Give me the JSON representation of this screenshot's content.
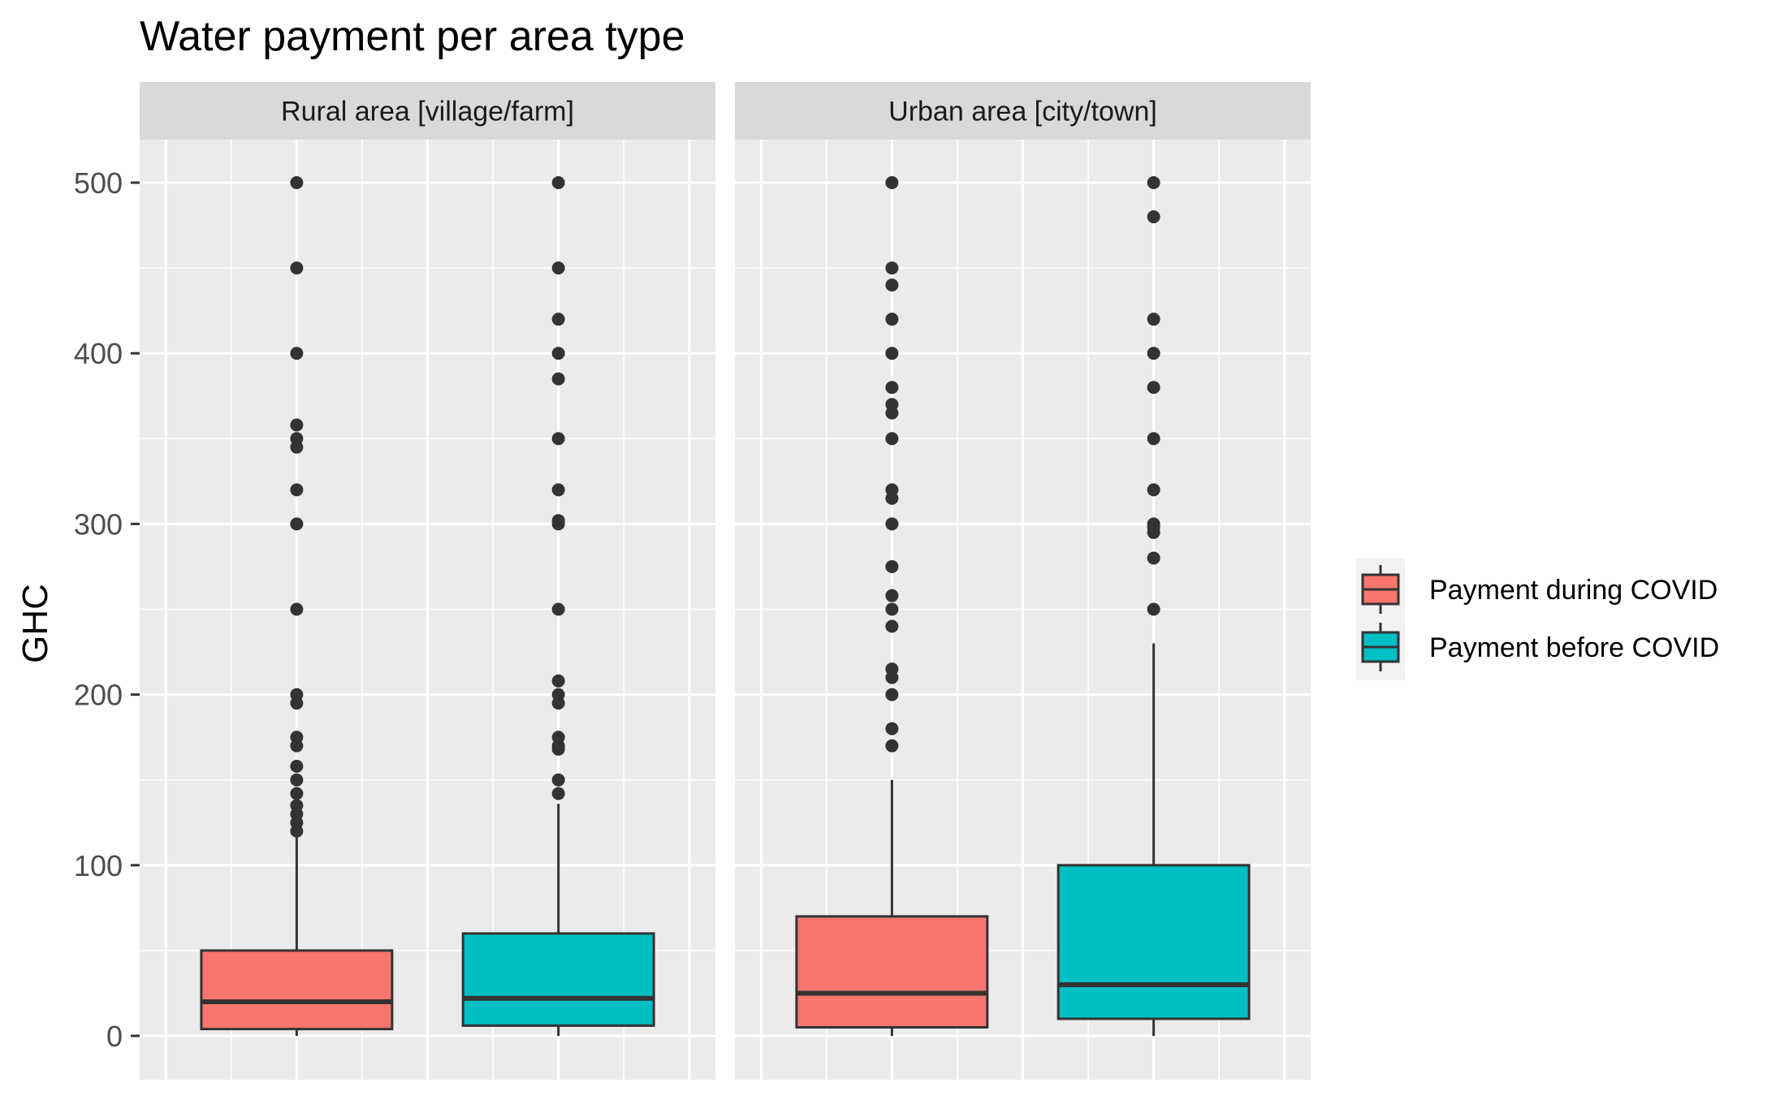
{
  "chart_data": {
    "type": "boxplot",
    "title": "Water payment per area type",
    "xlabel": "",
    "ylabel": "GHC",
    "ylim": [
      -25,
      550
    ],
    "y_ticks": [
      0,
      100,
      200,
      300,
      400,
      500
    ],
    "grid": true,
    "legend_position": "right",
    "legend": [
      {
        "name": "Payment during COVID",
        "color": "#F8766D"
      },
      {
        "name": "Payment before COVID",
        "color": "#00BFC4"
      }
    ],
    "panels": [
      {
        "label": "Rural area [village/farm]",
        "series": [
          {
            "name": "Payment during COVID",
            "color": "#F8766D",
            "min": 0,
            "q1": 4,
            "median": 20,
            "q3": 50,
            "whisker_high": 120,
            "outliers": [
              500,
              450,
              400,
              358,
              350,
              345,
              320,
              300,
              250,
              200,
              195,
              175,
              170,
              158,
              150,
              142,
              135,
              130,
              125,
              120
            ]
          },
          {
            "name": "Payment before COVID",
            "color": "#00BFC4",
            "min": 0,
            "q1": 6,
            "median": 22,
            "q3": 60,
            "whisker_high": 136,
            "outliers": [
              500,
              450,
              420,
              400,
              385,
              350,
              320,
              302,
              300,
              250,
              208,
              200,
              195,
              175,
              170,
              168,
              150,
              142
            ]
          }
        ]
      },
      {
        "label": "Urban area [city/town]",
        "series": [
          {
            "name": "Payment during COVID",
            "color": "#F8766D",
            "min": 0,
            "q1": 5,
            "median": 25,
            "q3": 70,
            "whisker_high": 150,
            "outliers": [
              500,
              450,
              440,
              420,
              400,
              380,
              370,
              365,
              350,
              320,
              315,
              300,
              275,
              258,
              250,
              240,
              215,
              210,
              200,
              180,
              170
            ]
          },
          {
            "name": "Payment before COVID",
            "color": "#00BFC4",
            "min": 0,
            "q1": 10,
            "median": 30,
            "q3": 100,
            "whisker_high": 230,
            "outliers": [
              500,
              480,
              420,
              400,
              380,
              350,
              320,
              300,
              298,
              295,
              280,
              250
            ]
          }
        ]
      }
    ]
  }
}
